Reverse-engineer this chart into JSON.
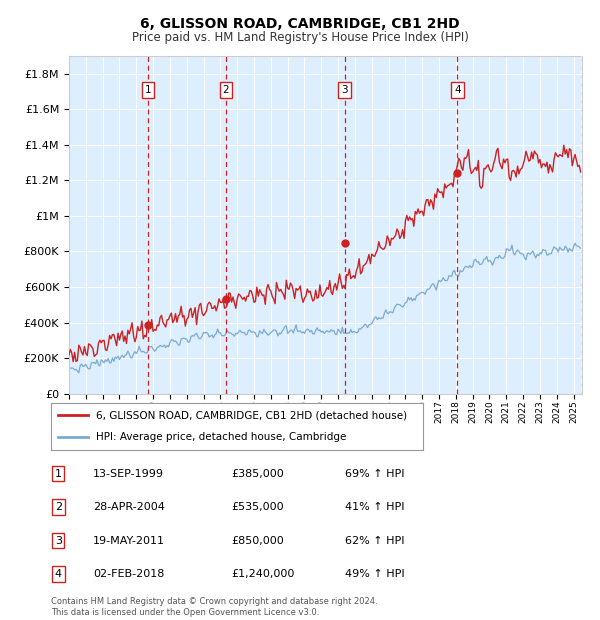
{
  "title": "6, GLISSON ROAD, CAMBRIDGE, CB1 2HD",
  "subtitle": "Price paid vs. HM Land Registry's House Price Index (HPI)",
  "ylabel_ticks": [
    "£0",
    "£200K",
    "£400K",
    "£600K",
    "£800K",
    "£1M",
    "£1.2M",
    "£1.4M",
    "£1.6M",
    "£1.8M"
  ],
  "ytick_values": [
    0,
    200000,
    400000,
    600000,
    800000,
    1000000,
    1200000,
    1400000,
    1600000,
    1800000
  ],
  "ylim": [
    0,
    1900000
  ],
  "xlim_start": 1995.0,
  "xlim_end": 2025.5,
  "sale_dates": [
    1999.71,
    2004.32,
    2011.38,
    2018.09
  ],
  "sale_prices": [
    385000,
    535000,
    850000,
    1240000
  ],
  "sale_labels": [
    "1",
    "2",
    "3",
    "4"
  ],
  "hpi_color": "#7aaad0",
  "price_color": "#cc2222",
  "dashed_line_color": "#cc2222",
  "background_color": "#ffffff",
  "plot_bg_color": "#ddeeff",
  "grid_color": "#ffffff",
  "legend_line1": "6, GLISSON ROAD, CAMBRIDGE, CB1 2HD (detached house)",
  "legend_line2": "HPI: Average price, detached house, Cambridge",
  "table_rows": [
    [
      "1",
      "13-SEP-1999",
      "£385,000",
      "69% ↑ HPI"
    ],
    [
      "2",
      "28-APR-2004",
      "£535,000",
      "41% ↑ HPI"
    ],
    [
      "3",
      "19-MAY-2011",
      "£850,000",
      "62% ↑ HPI"
    ],
    [
      "4",
      "02-FEB-2018",
      "£1,240,000",
      "49% ↑ HPI"
    ]
  ],
  "footnote": "Contains HM Land Registry data © Crown copyright and database right 2024.\nThis data is licensed under the Open Government Licence v3.0.",
  "xtick_years": [
    1995,
    1996,
    1997,
    1998,
    1999,
    2000,
    2001,
    2002,
    2003,
    2004,
    2005,
    2006,
    2007,
    2008,
    2009,
    2010,
    2011,
    2012,
    2013,
    2014,
    2015,
    2016,
    2017,
    2018,
    2019,
    2020,
    2021,
    2022,
    2023,
    2024,
    2025
  ]
}
